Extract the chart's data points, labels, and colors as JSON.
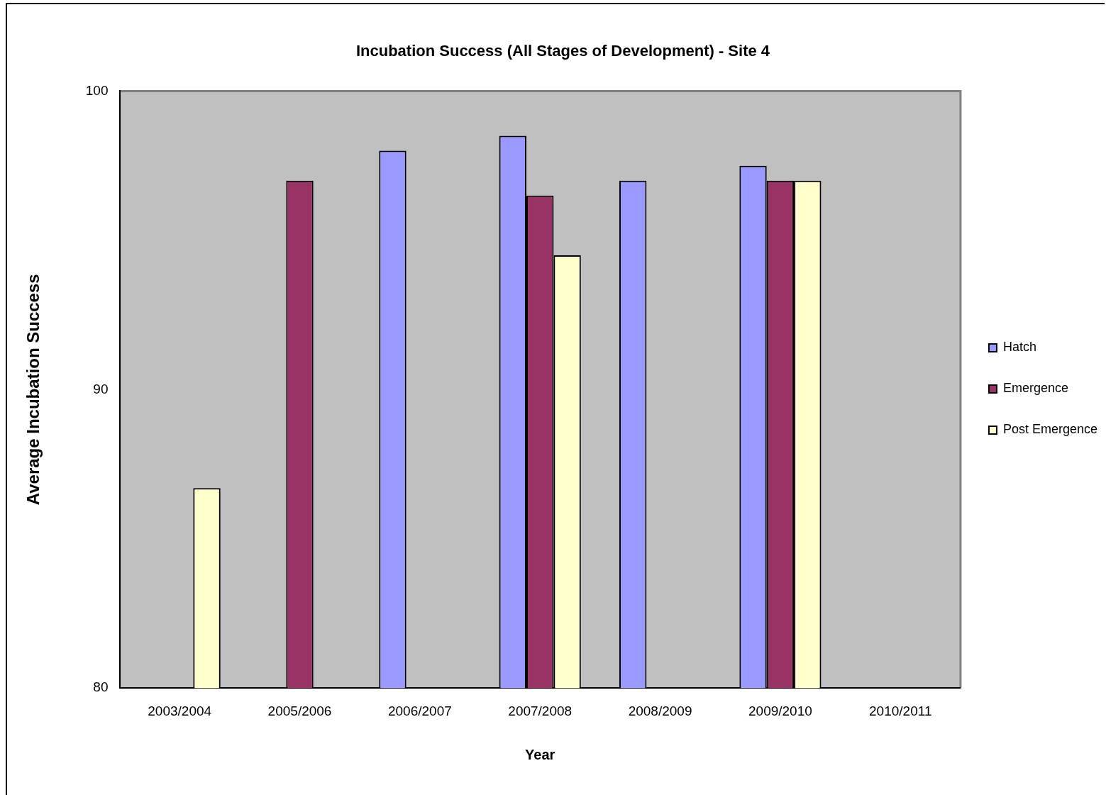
{
  "chart_data": {
    "type": "bar",
    "title": "Incubation Success (All Stages of Development) - Site 4",
    "xlabel": "Year",
    "ylabel": "Average Incubation Success",
    "categories": [
      "2003/2004",
      "2005/2006",
      "2006/2007",
      "2007/2008",
      "2008/2009",
      "2009/2010",
      "2010/2011"
    ],
    "series": [
      {
        "name": "Hatch",
        "color": "#9999ff",
        "values": [
          null,
          null,
          98.0,
          98.5,
          97.0,
          97.5,
          null
        ]
      },
      {
        "name": "Emergence",
        "color": "#993366",
        "values": [
          null,
          97.0,
          null,
          96.5,
          null,
          97.0,
          null
        ]
      },
      {
        "name": "Post Emergence",
        "color": "#ffffcc",
        "values": [
          86.7,
          null,
          null,
          94.5,
          null,
          97.0,
          null
        ]
      }
    ],
    "ylim": [
      80,
      100
    ],
    "yticks": [
      80,
      90,
      100
    ],
    "grid": false,
    "legend": "right"
  }
}
